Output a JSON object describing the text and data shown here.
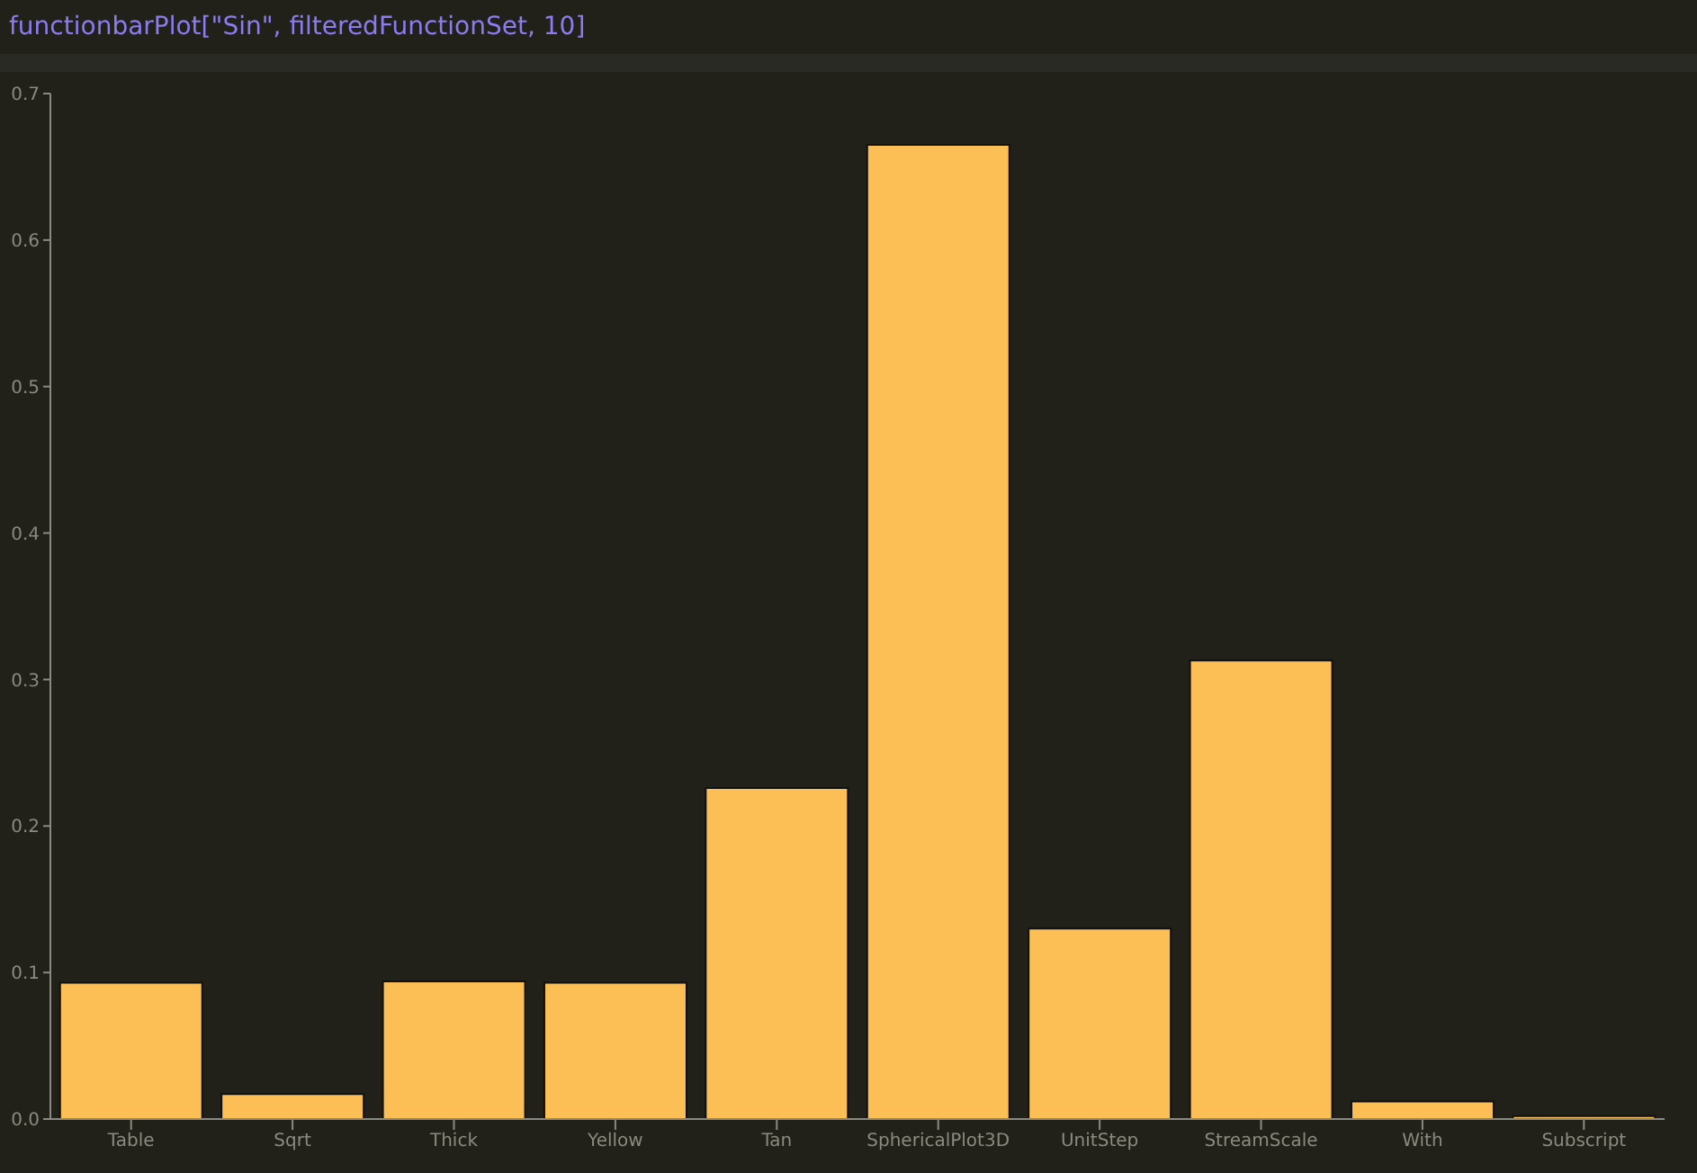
{
  "chart_data": {
    "type": "bar",
    "title": "functionbarPlot[\"Sin\", filteredFunctionSet, 10]",
    "categories": [
      "Table",
      "Sqrt",
      "Thick",
      "Yellow",
      "Tan",
      "SphericalPlot3D",
      "UnitStep",
      "StreamScale",
      "With",
      "Subscript"
    ],
    "values": [
      0.093,
      0.017,
      0.094,
      0.093,
      0.226,
      0.665,
      0.13,
      0.313,
      0.012,
      0.002
    ],
    "color": "#fbbf55",
    "ylim": [
      0,
      0.7
    ],
    "yticks": [
      {
        "value": 0,
        "label": "0.0"
      },
      0.1,
      0.2,
      0.3,
      0.4,
      0.5,
      0.6,
      0.7
    ],
    "grid": false
  }
}
